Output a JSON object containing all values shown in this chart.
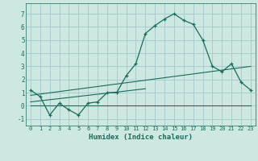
{
  "title": "",
  "xlabel": "Humidex (Indice chaleur)",
  "ylabel": "",
  "bg_color": "#cce8e0",
  "grid_color": "#aacccc",
  "line_color": "#1a6b5a",
  "xlim": [
    -0.5,
    23.5
  ],
  "ylim": [
    -1.5,
    7.8
  ],
  "xticks": [
    0,
    1,
    2,
    3,
    4,
    5,
    6,
    7,
    8,
    9,
    10,
    11,
    12,
    13,
    14,
    15,
    16,
    17,
    18,
    19,
    20,
    21,
    22,
    23
  ],
  "yticks": [
    -1,
    0,
    1,
    2,
    3,
    4,
    5,
    6,
    7
  ],
  "main_x": [
    0,
    1,
    2,
    3,
    4,
    5,
    6,
    7,
    8,
    9,
    10,
    11,
    12,
    13,
    14,
    15,
    16,
    17,
    18,
    19,
    20,
    21,
    22,
    23
  ],
  "main_y": [
    1.2,
    0.7,
    -0.7,
    0.2,
    -0.3,
    -0.7,
    0.2,
    0.3,
    1.0,
    1.0,
    2.3,
    3.2,
    5.5,
    6.1,
    6.6,
    7.0,
    6.5,
    6.2,
    5.0,
    3.0,
    2.6,
    3.2,
    1.8,
    1.2
  ],
  "line1_x": [
    0,
    23
  ],
  "line1_y": [
    0.0,
    0.0
  ],
  "line2_x": [
    0,
    12
  ],
  "line2_y": [
    0.3,
    1.3
  ],
  "line3_x": [
    0,
    23
  ],
  "line3_y": [
    0.8,
    3.0
  ]
}
